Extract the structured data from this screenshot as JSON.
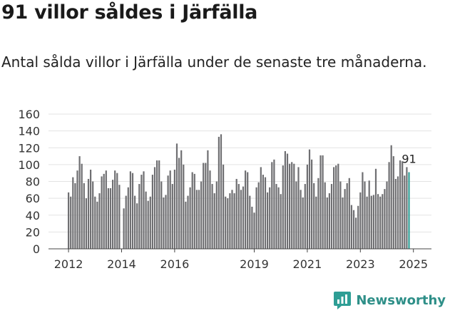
{
  "title": "91 villor såldes i Järfälla",
  "subtitle": "Antal sålda villor i Järfälla under de senaste tre månaderna.",
  "brand": "Newsworthy",
  "colors": {
    "bar": "#6f6f72",
    "highlight": "#2e9e95",
    "brand": "#2e8f88"
  },
  "chart_data": {
    "type": "bar",
    "title": "",
    "xlabel": "",
    "ylabel": "",
    "ylim": [
      0,
      160
    ],
    "yticks": [
      0,
      20,
      40,
      60,
      80,
      100,
      120,
      140,
      160
    ],
    "xticks": [
      "2012",
      "2014",
      "2016",
      "2019",
      "2021",
      "2023",
      "2025"
    ],
    "xtick_index": [
      0,
      24,
      48,
      84,
      108,
      132,
      156
    ],
    "grid": true,
    "highlight_last": true,
    "last_label": "91",
    "values": [
      67,
      62,
      85,
      78,
      93,
      110,
      101,
      78,
      60,
      83,
      94,
      80,
      62,
      56,
      66,
      86,
      89,
      93,
      72,
      72,
      82,
      93,
      90,
      76,
      0,
      48,
      63,
      73,
      92,
      90,
      63,
      54,
      77,
      88,
      92,
      68,
      57,
      62,
      88,
      97,
      105,
      105,
      80,
      61,
      64,
      87,
      93,
      77,
      94,
      125,
      108,
      117,
      100,
      56,
      63,
      73,
      91,
      89,
      70,
      70,
      80,
      102,
      102,
      117,
      93,
      77,
      66,
      80,
      133,
      136,
      100,
      62,
      60,
      66,
      70,
      66,
      83,
      77,
      70,
      74,
      93,
      91,
      63,
      50,
      43,
      73,
      79,
      97,
      88,
      85,
      67,
      73,
      103,
      106,
      77,
      73,
      65,
      99,
      116,
      113,
      101,
      103,
      101,
      80,
      97,
      70,
      61,
      77,
      100,
      118,
      106,
      78,
      62,
      84,
      111,
      111,
      79,
      61,
      66,
      77,
      97,
      99,
      101,
      80,
      61,
      71,
      78,
      84,
      52,
      46,
      37,
      51,
      67,
      91,
      80,
      62,
      81,
      63,
      64,
      95,
      65,
      62,
      65,
      71,
      80,
      103,
      123,
      110,
      83,
      86,
      105,
      104,
      87,
      97,
      91
    ]
  }
}
